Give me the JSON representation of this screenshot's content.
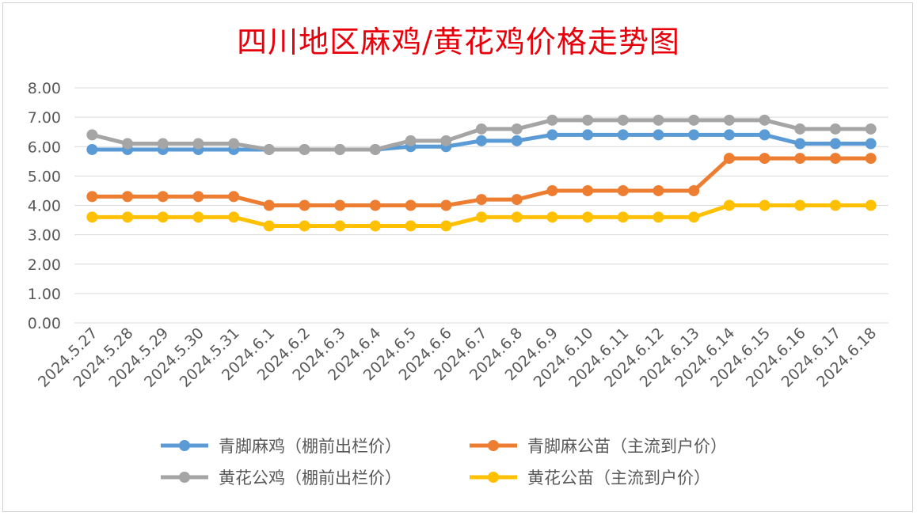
{
  "chart_data": {
    "type": "line",
    "title": "四川地区麻鸡/黄花鸡价格走势图",
    "categories": [
      "2024.5.27",
      "2024.5.28",
      "2024.5.29",
      "2024.5.30",
      "2024.5.31",
      "2024.6.1",
      "2024.6.2",
      "2024.6.3",
      "2024.6.4",
      "2024.6.5",
      "2024.6.6",
      "2024.6.7",
      "2024.6.8",
      "2024.6.9",
      "2024.6.10",
      "2024.6.11",
      "2024.6.12",
      "2024.6.13",
      "2024.6.14",
      "2024.6.15",
      "2024.6.16",
      "2024.6.17",
      "2024.6.18"
    ],
    "ylim": [
      0,
      8
    ],
    "yticks": [
      "0.00",
      "1.00",
      "2.00",
      "3.00",
      "4.00",
      "5.00",
      "6.00",
      "7.00",
      "8.00"
    ],
    "grid": true,
    "legend_position": "bottom",
    "series": [
      {
        "name": "青脚麻鸡（棚前出栏价）",
        "color": "#5b9bd5",
        "values": [
          5.9,
          5.9,
          5.9,
          5.9,
          5.9,
          5.9,
          5.9,
          5.9,
          5.9,
          6.0,
          6.0,
          6.2,
          6.2,
          6.4,
          6.4,
          6.4,
          6.4,
          6.4,
          6.4,
          6.4,
          6.1,
          6.1,
          6.1
        ]
      },
      {
        "name": "青脚麻公苗（主流到户价）",
        "color": "#ed7d31",
        "values": [
          4.3,
          4.3,
          4.3,
          4.3,
          4.3,
          4.0,
          4.0,
          4.0,
          4.0,
          4.0,
          4.0,
          4.2,
          4.2,
          4.5,
          4.5,
          4.5,
          4.5,
          4.5,
          5.6,
          5.6,
          5.6,
          5.6,
          5.6
        ]
      },
      {
        "name": "黄花公鸡（棚前出栏价）",
        "color": "#a5a5a5",
        "values": [
          6.4,
          6.1,
          6.1,
          6.1,
          6.1,
          5.9,
          5.9,
          5.9,
          5.9,
          6.2,
          6.2,
          6.6,
          6.6,
          6.9,
          6.9,
          6.9,
          6.9,
          6.9,
          6.9,
          6.9,
          6.6,
          6.6,
          6.6
        ]
      },
      {
        "name": "黄花公苗（主流到户价）",
        "color": "#ffc000",
        "values": [
          3.6,
          3.6,
          3.6,
          3.6,
          3.6,
          3.3,
          3.3,
          3.3,
          3.3,
          3.3,
          3.3,
          3.6,
          3.6,
          3.6,
          3.6,
          3.6,
          3.6,
          3.6,
          4.0,
          4.0,
          4.0,
          4.0,
          4.0
        ]
      }
    ]
  }
}
